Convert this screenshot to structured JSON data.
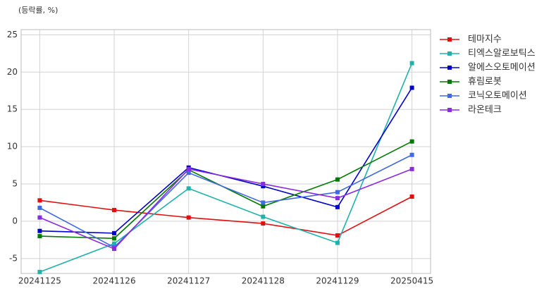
{
  "chart_data": {
    "type": "line",
    "y_label": "(등락률, %)",
    "categories": [
      "20241125",
      "20241126",
      "20241127",
      "20241128",
      "20241129",
      "20250415"
    ],
    "series": [
      {
        "name": "테마지수",
        "color": "#e01010",
        "values": [
          2.8,
          1.5,
          0.5,
          -0.3,
          -1.9,
          3.3
        ]
      },
      {
        "name": "티엑스알로보틱스",
        "color": "#20b2aa",
        "values": [
          -6.8,
          -3.0,
          4.4,
          0.6,
          -2.9,
          21.2
        ]
      },
      {
        "name": "알에스오토메이션",
        "color": "#0000cd",
        "values": [
          -1.3,
          -1.6,
          7.2,
          4.7,
          1.9,
          17.9
        ]
      },
      {
        "name": "휴림로봇",
        "color": "#007a00",
        "values": [
          -2.0,
          -2.3,
          6.9,
          2.0,
          5.6,
          10.7
        ]
      },
      {
        "name": "코닉오토메이션",
        "color": "#4169e1",
        "values": [
          1.8,
          -3.5,
          6.5,
          2.5,
          3.9,
          8.9
        ]
      },
      {
        "name": "라온테크",
        "color": "#8a2be2",
        "values": [
          0.5,
          -3.7,
          7.0,
          5.0,
          3.1,
          7.0
        ]
      }
    ],
    "ylim": [
      -7,
      25.7
    ],
    "yticks": [
      -5,
      0,
      5,
      10,
      15,
      20,
      25
    ],
    "grid": true,
    "legend": "right"
  }
}
